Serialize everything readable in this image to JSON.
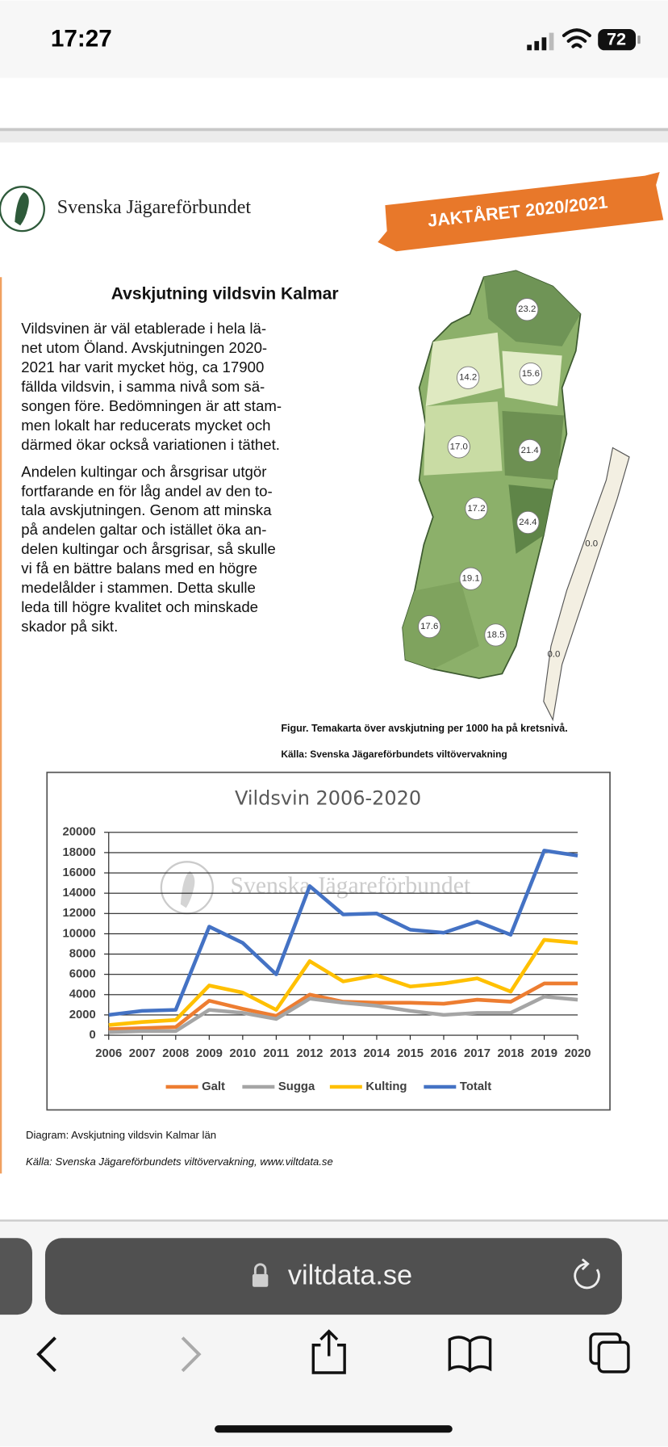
{
  "status_bar": {
    "time": "17:27",
    "battery": "72"
  },
  "document": {
    "logo_text": "Svenska Jägareförbundet",
    "banner": "JAKTÅRET 2020/2021",
    "heading": "Avskjutning vildsvin Kalmar",
    "paragraphs": [
      [
        "Vildsvinen är väl etablerade i hela lä-",
        "net utom Öland. Avskjutningen 2020-",
        "2021 har varit mycket hög, ca 17900",
        "fällda vildsvin, i samma nivå som sä-",
        "songen före. Bedömningen är att stam-",
        "men lokalt har reducerats mycket och",
        "därmed ökar också variationen i täthet."
      ],
      [
        "Andelen kultingar och årsgrisar utgör",
        "fortfarande en för låg andel av den to-",
        "tala avskjutningen. Genom att minska",
        "på andelen galtar och istället öka an-",
        "delen kultingar och årsgrisar, så skulle",
        "vi få en bättre balans med en högre",
        "medelålder i stammen. Detta skulle",
        "leda till högre kvalitet och minskade",
        "skador på sikt."
      ]
    ],
    "map_labels": [
      "23.2",
      "14.2",
      "15.6",
      "17.0",
      "21.4",
      "17.2",
      "24.4",
      "0.0",
      "19.1",
      "17.6",
      "18.5",
      "0.0"
    ],
    "map_caption": "Figur. Temakarta över avskjutning per 1000 ha på kretsnivå.",
    "map_source": "Källa: Svenska Jägareförbundets viltövervakning",
    "diagram_caption": "Diagram: Avskjutning vildsvin Kalmar län",
    "diagram_source": "Källa: Svenska Jägareförbundets viltövervakning, www.viltdata.se"
  },
  "chart": {
    "type": "line",
    "title": "Vildsvin 2006-2020",
    "watermark": "Svenska Jägareförbundet",
    "categories": [
      "2006",
      "2007",
      "2008",
      "2009",
      "2010",
      "2011",
      "2012",
      "2013",
      "2014",
      "2015",
      "2016",
      "2017",
      "2018",
      "2019",
      "2020"
    ],
    "series": [
      {
        "name": "Galt",
        "color": "#ed7d31",
        "values": [
          600,
          700,
          800,
          3400,
          2600,
          1900,
          4000,
          3300,
          3200,
          3200,
          3100,
          3500,
          3300,
          5100,
          5100
        ]
      },
      {
        "name": "Sugga",
        "color": "#a5a5a5",
        "values": [
          300,
          400,
          400,
          2500,
          2200,
          1600,
          3600,
          3200,
          2900,
          2400,
          2000,
          2200,
          2200,
          3800,
          3500
        ]
      },
      {
        "name": "Kulting",
        "color": "#ffc000",
        "values": [
          1000,
          1300,
          1500,
          4900,
          4200,
          2500,
          7300,
          5300,
          5900,
          4800,
          5100,
          5600,
          4300,
          9400,
          9100
        ]
      },
      {
        "name": "Totalt",
        "color": "#4472c4",
        "values": [
          2000,
          2400,
          2500,
          10700,
          9100,
          6000,
          14700,
          11900,
          12000,
          10400,
          10100,
          11200,
          9900,
          18200,
          17700
        ]
      }
    ],
    "ylim": [
      0,
      20000
    ],
    "yticks": [
      0,
      2000,
      4000,
      6000,
      8000,
      10000,
      12000,
      14000,
      16000,
      18000,
      20000
    ],
    "grid": true,
    "legend": "bottom"
  },
  "browser": {
    "url": "viltdata.se"
  }
}
